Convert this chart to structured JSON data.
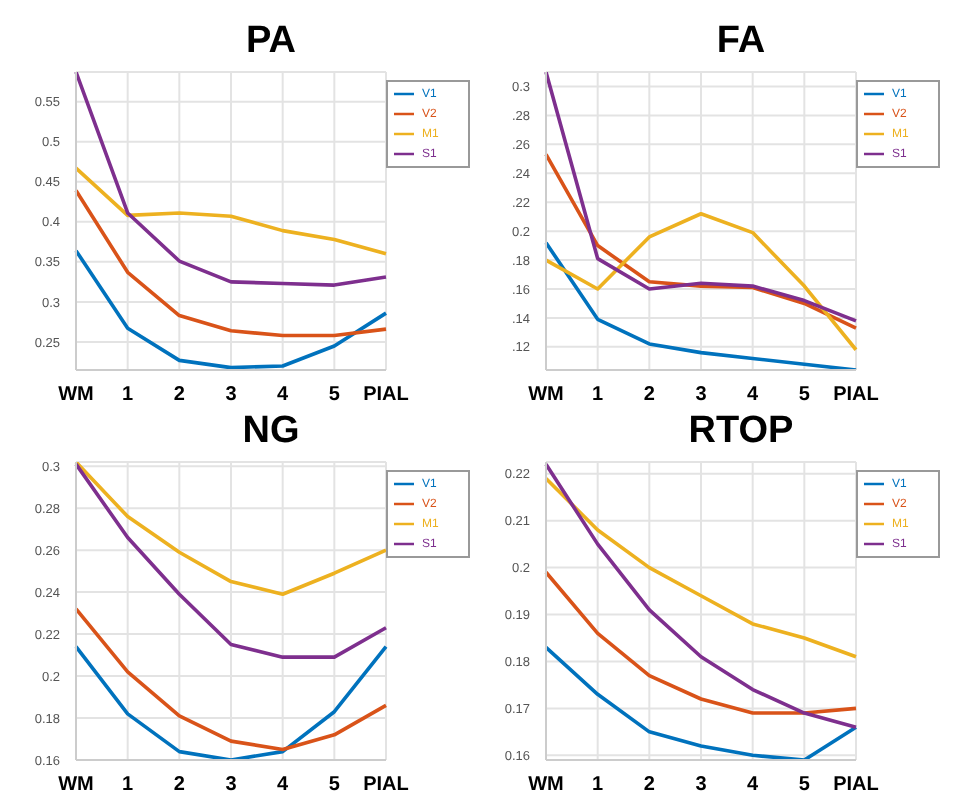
{
  "chart_data": [
    {
      "type": "line",
      "title": "PA",
      "categories": [
        "WM",
        "1",
        "2",
        "3",
        "4",
        "5",
        "PIAL"
      ],
      "ylim": [
        0.215,
        0.587
      ],
      "yticks": [
        0.25,
        0.3,
        0.35,
        0.4,
        0.45,
        0.5,
        0.55
      ],
      "grid": true,
      "legend": "top right",
      "series": [
        {
          "name": "V1",
          "color": "#0072bd",
          "values": [
            0.364,
            0.267,
            0.227,
            0.218,
            0.22,
            0.245,
            0.286
          ]
        },
        {
          "name": "V2",
          "color": "#d95319",
          "values": [
            0.439,
            0.337,
            0.283,
            0.264,
            0.258,
            0.258,
            0.266
          ]
        },
        {
          "name": "M1",
          "color": "#edb120",
          "values": [
            0.467,
            0.408,
            0.411,
            0.407,
            0.389,
            0.378,
            0.36
          ]
        },
        {
          "name": "S1",
          "color": "#7e2f8e",
          "values": [
            0.587,
            0.411,
            0.351,
            0.325,
            0.323,
            0.321,
            0.331
          ]
        }
      ]
    },
    {
      "type": "line",
      "title": "FA",
      "categories": [
        "WM",
        "1",
        "2",
        "3",
        "4",
        "5",
        "PIAL"
      ],
      "ylim": [
        0.104,
        0.31
      ],
      "yticks": [
        {
          "value": 0.12,
          "label": ".12"
        },
        {
          "value": 0.14,
          "label": ".14"
        },
        {
          "value": 0.16,
          "label": ".16"
        },
        {
          "value": 0.18,
          "label": ".18"
        },
        0.2,
        {
          "value": 0.22,
          "label": ".22"
        },
        {
          "value": 0.24,
          "label": ".24"
        },
        {
          "value": 0.26,
          "label": ".26"
        },
        {
          "value": 0.28,
          "label": ".28"
        },
        0.3
      ],
      "grid": true,
      "legend": "top right",
      "series": [
        {
          "name": "V1",
          "color": "#0072bd",
          "values": [
            0.192,
            0.139,
            0.122,
            0.116,
            0.112,
            0.108,
            0.104
          ]
        },
        {
          "name": "V2",
          "color": "#d95319",
          "values": [
            0.253,
            0.19,
            0.165,
            0.162,
            0.161,
            0.15,
            0.133
          ]
        },
        {
          "name": "M1",
          "color": "#edb120",
          "values": [
            0.18,
            0.16,
            0.196,
            0.212,
            0.199,
            0.162,
            0.118
          ]
        },
        {
          "name": "S1",
          "color": "#7e2f8e",
          "values": [
            0.31,
            0.181,
            0.16,
            0.164,
            0.162,
            0.152,
            0.138
          ]
        }
      ]
    },
    {
      "type": "line",
      "title": "NG",
      "categories": [
        "WM",
        "1",
        "2",
        "3",
        "4",
        "5",
        "PIAL"
      ],
      "ylim": [
        0.16,
        0.302
      ],
      "yticks": [
        0.16,
        0.18,
        0.2,
        0.22,
        0.24,
        0.26,
        0.28,
        0.3
      ],
      "grid": true,
      "legend": "top right",
      "series": [
        {
          "name": "V1",
          "color": "#0072bd",
          "values": [
            0.214,
            0.182,
            0.164,
            0.16,
            0.164,
            0.183,
            0.214
          ]
        },
        {
          "name": "V2",
          "color": "#d95319",
          "values": [
            0.232,
            0.202,
            0.181,
            0.169,
            0.165,
            0.172,
            0.186
          ]
        },
        {
          "name": "M1",
          "color": "#edb120",
          "values": [
            0.302,
            0.276,
            0.259,
            0.245,
            0.239,
            0.249,
            0.26
          ]
        },
        {
          "name": "S1",
          "color": "#7e2f8e",
          "values": [
            0.301,
            0.266,
            0.239,
            0.215,
            0.209,
            0.209,
            0.223
          ]
        }
      ]
    },
    {
      "type": "line",
      "title": "RTOP",
      "categories": [
        "WM",
        "1",
        "2",
        "3",
        "4",
        "5",
        "PIAL"
      ],
      "ylim": [
        0.159,
        0.2225
      ],
      "yticks": [
        0.16,
        0.17,
        0.18,
        0.19,
        0.2,
        0.21,
        0.22
      ],
      "grid": true,
      "legend": "top right",
      "series": [
        {
          "name": "V1",
          "color": "#0072bd",
          "values": [
            0.183,
            0.173,
            0.165,
            0.162,
            0.16,
            0.159,
            0.166
          ]
        },
        {
          "name": "V2",
          "color": "#d95319",
          "values": [
            0.199,
            0.186,
            0.177,
            0.172,
            0.169,
            0.169,
            0.17
          ]
        },
        {
          "name": "M1",
          "color": "#edb120",
          "values": [
            0.219,
            0.208,
            0.2,
            0.194,
            0.188,
            0.185,
            0.181
          ]
        },
        {
          "name": "S1",
          "color": "#7e2f8e",
          "values": [
            0.222,
            0.205,
            0.191,
            0.181,
            0.174,
            0.169,
            0.166
          ]
        }
      ]
    }
  ]
}
